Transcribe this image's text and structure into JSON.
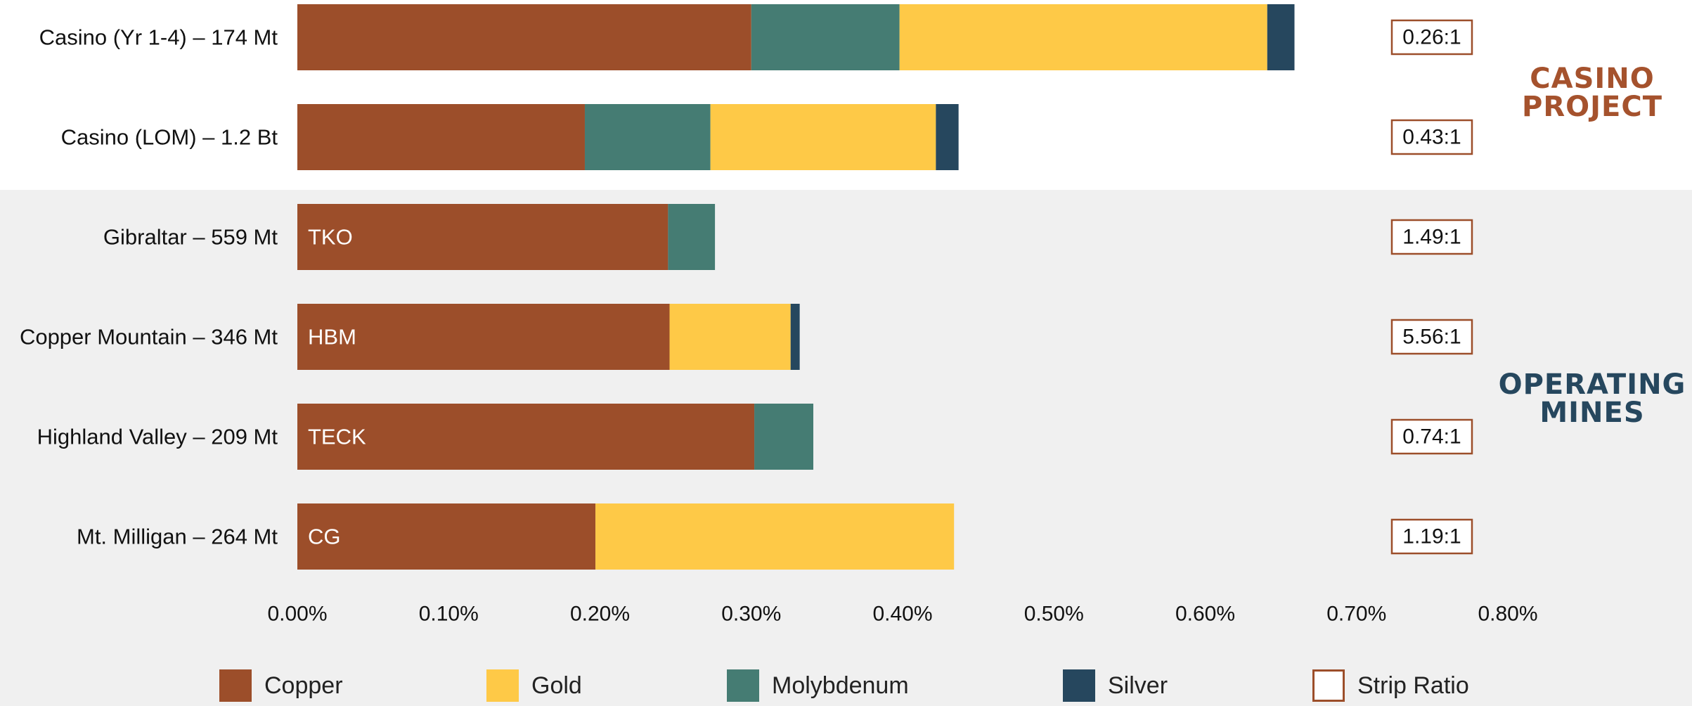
{
  "colors": {
    "copper": "#9c4e2a",
    "gold": "#fec947",
    "molybdenum": "#457c73",
    "silver": "#26475e",
    "strip_ratio_border": "#9c4e2a",
    "casino_label": "#a5522d",
    "operating_label": "#26475e",
    "band": "#f0f0f0",
    "text": "#111111"
  },
  "sections": {
    "casino": [
      "CASINO",
      "PROJECT"
    ],
    "operating": [
      "OPERATING",
      "MINES"
    ]
  },
  "legend": [
    {
      "key": "copper",
      "label": "Copper",
      "style": "fill"
    },
    {
      "key": "gold",
      "label": "Gold",
      "style": "fill"
    },
    {
      "key": "molybdenum",
      "label": "Molybdenum",
      "style": "fill"
    },
    {
      "key": "silver",
      "label": "Silver",
      "style": "fill"
    },
    {
      "key": "strip_ratio_border",
      "label": "Strip Ratio",
      "style": "outline"
    }
  ],
  "chart_data": {
    "type": "bar",
    "orientation": "horizontal",
    "stacked": true,
    "title": "",
    "xlabel": "",
    "ylabel": "",
    "xlim": [
      0,
      0.8
    ],
    "x_ticks": [
      "0.00%",
      "0.10%",
      "0.20%",
      "0.30%",
      "0.40%",
      "0.50%",
      "0.60%",
      "0.70%",
      "0.80%"
    ],
    "categories": [
      "Casino (Yr 1-4)  – 174 Mt",
      "Casino (LOM)  – 1.2 Bt",
      "Gibraltar  – 559 Mt",
      "Copper Mountain  – 346 Mt",
      "Highland Valley  – 209 Mt",
      "Mt. Milligan  – 264 Mt"
    ],
    "bar_labels": [
      "",
      "",
      "TKO",
      "HBM",
      "TECK",
      "CG"
    ],
    "strip_ratios": [
      "0.26:1",
      "0.43:1",
      "1.49:1",
      "5.56:1",
      "0.74:1",
      "1.19:1"
    ],
    "series": [
      {
        "name": "Copper",
        "key": "copper",
        "values": [
          0.3,
          0.19,
          0.245,
          0.246,
          0.302,
          0.197
        ]
      },
      {
        "name": "Molybdenum",
        "key": "molybdenum",
        "values": [
          0.098,
          0.083,
          0.031,
          0,
          0.039,
          0
        ]
      },
      {
        "name": "Gold",
        "key": "gold",
        "values": [
          0.243,
          0.149,
          0,
          0.08,
          0,
          0.237
        ]
      },
      {
        "name": "Silver",
        "key": "silver",
        "values": [
          0.018,
          0.015,
          0,
          0.006,
          0,
          0
        ]
      }
    ],
    "legend_position": "bottom",
    "grid": false
  }
}
